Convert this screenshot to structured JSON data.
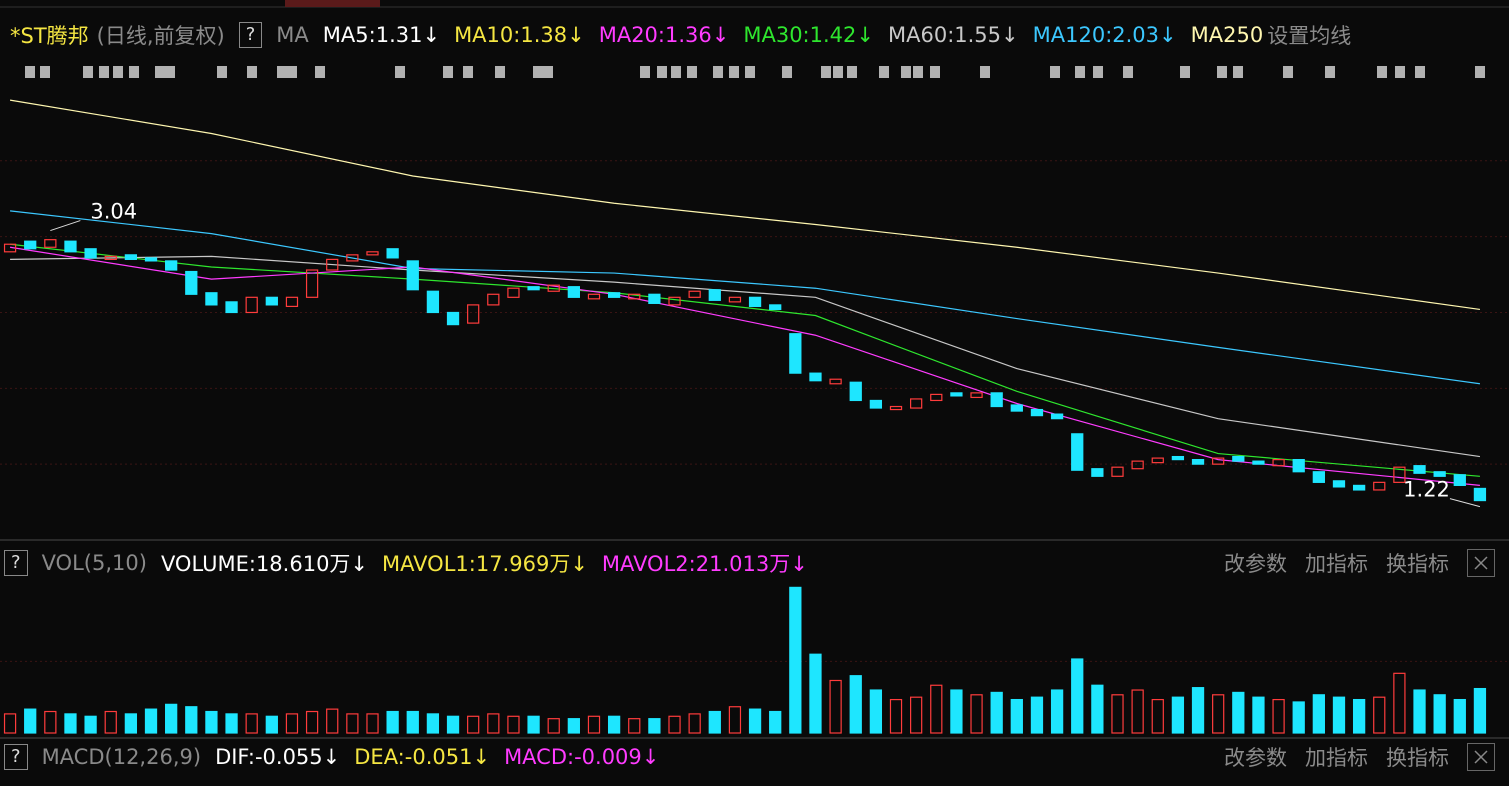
{
  "price_panel": {
    "name": "*ST腾邦",
    "period": "(日线,前复权)",
    "help": "?",
    "ma_label": "MA",
    "indicators": [
      {
        "text": "MA5:1.31↓",
        "color": "#ffffff"
      },
      {
        "text": "MA10:1.38↓",
        "color": "#f5e642"
      },
      {
        "text": "MA20:1.36↓",
        "color": "#ff3cff"
      },
      {
        "text": "MA30:1.42↓",
        "color": "#2ee62e"
      },
      {
        "text": "MA60:1.55↓",
        "color": "#c8c8c8"
      },
      {
        "text": "MA120:2.03↓",
        "color": "#3cc8ff"
      },
      {
        "text": "MA250",
        "color": "#fff7b0"
      }
    ],
    "settings": "设置均线"
  },
  "volume_panel": {
    "help": "?",
    "name": "VOL(5,10)",
    "indicators": [
      {
        "text": "VOLUME:18.610万↓",
        "color": "#ffffff"
      },
      {
        "text": "MAVOL1:17.969万↓",
        "color": "#f5e642"
      },
      {
        "text": "MAVOL2:21.013万↓",
        "color": "#ff3cff"
      }
    ],
    "buttons": [
      "改参数",
      "加指标",
      "换指标"
    ]
  },
  "macd_panel": {
    "help": "?",
    "name": "MACD(12,26,9)",
    "indicators": [
      {
        "text": "DIF:-0.055↓",
        "color": "#ffffff"
      },
      {
        "text": "DEA:-0.051↓",
        "color": "#f5e642"
      },
      {
        "text": "MACD:-0.009↓",
        "color": "#ff3cff"
      }
    ],
    "buttons": [
      "改参数",
      "加指标",
      "换指标"
    ]
  },
  "chart_data": [
    {
      "type": "candlestick",
      "up_color": "#ff3c3c",
      "down_color": "#1ee6ff",
      "ylim": [
        1.0,
        3.98
      ],
      "yticks": [
        1.5,
        2,
        2.5,
        3,
        3.5
      ],
      "grid": true,
      "open": [
        2.9,
        2.97,
        2.93,
        2.97,
        2.92,
        2.85,
        2.88,
        2.86,
        2.84,
        2.77,
        2.63,
        2.57,
        2.5,
        2.6,
        2.54,
        2.6,
        2.78,
        2.84,
        2.88,
        2.92,
        2.84,
        2.64,
        2.5,
        2.43,
        2.55,
        2.6,
        2.67,
        2.64,
        2.67,
        2.59,
        2.63,
        2.59,
        2.62,
        2.55,
        2.6,
        2.65,
        2.57,
        2.6,
        2.55,
        2.36,
        2.1,
        2.03,
        2.04,
        1.92,
        1.86,
        1.87,
        1.92,
        1.97,
        1.94,
        1.97,
        1.89,
        1.86,
        1.83,
        1.7,
        1.47,
        1.42,
        1.47,
        1.51,
        1.55,
        1.53,
        1.5,
        1.55,
        1.52,
        1.49,
        1.53,
        1.45,
        1.39,
        1.36,
        1.33,
        1.38,
        1.49,
        1.45,
        1.43,
        1.34
      ],
      "close": [
        2.95,
        2.92,
        2.98,
        2.9,
        2.86,
        2.87,
        2.85,
        2.84,
        2.78,
        2.62,
        2.55,
        2.5,
        2.6,
        2.55,
        2.6,
        2.78,
        2.85,
        2.88,
        2.9,
        2.86,
        2.65,
        2.5,
        2.42,
        2.55,
        2.62,
        2.66,
        2.65,
        2.68,
        2.6,
        2.62,
        2.6,
        2.62,
        2.56,
        2.6,
        2.64,
        2.58,
        2.6,
        2.54,
        2.52,
        2.1,
        2.05,
        2.06,
        1.92,
        1.87,
        1.88,
        1.93,
        1.96,
        1.95,
        1.97,
        1.88,
        1.85,
        1.82,
        1.8,
        1.46,
        1.42,
        1.48,
        1.52,
        1.54,
        1.53,
        1.5,
        1.54,
        1.52,
        1.5,
        1.53,
        1.45,
        1.38,
        1.35,
        1.33,
        1.38,
        1.48,
        1.44,
        1.42,
        1.36,
        1.26
      ],
      "series": [
        {
          "name": "MA250",
          "color": "#fff7b0",
          "x": [
            0,
            10,
            20,
            30,
            40,
            50,
            60,
            73
          ],
          "values": [
            3.9,
            3.68,
            3.4,
            3.22,
            3.08,
            2.93,
            2.76,
            2.52
          ]
        },
        {
          "name": "MA120",
          "color": "#3cc8ff",
          "x": [
            0,
            10,
            20,
            30,
            40,
            50,
            60,
            73
          ],
          "values": [
            3.17,
            3.02,
            2.79,
            2.76,
            2.66,
            2.46,
            2.27,
            2.03
          ]
        },
        {
          "name": "MA60",
          "color": "#c8c8c8",
          "x": [
            0,
            10,
            20,
            30,
            40,
            50,
            60,
            73
          ],
          "values": [
            2.85,
            2.87,
            2.78,
            2.7,
            2.6,
            2.13,
            1.8,
            1.55
          ]
        },
        {
          "name": "MA30",
          "color": "#2ee62e",
          "x": [
            0,
            10,
            20,
            30,
            40,
            50,
            60,
            73
          ],
          "values": [
            2.95,
            2.8,
            2.72,
            2.63,
            2.48,
            1.98,
            1.57,
            1.42
          ]
        },
        {
          "name": "MA20",
          "color": "#ff3cff",
          "x": [
            0,
            10,
            20,
            30,
            40,
            50,
            60,
            73
          ],
          "values": [
            2.93,
            2.72,
            2.8,
            2.62,
            2.35,
            1.9,
            1.53,
            1.36
          ]
        }
      ],
      "annotations": [
        {
          "label": "3.04",
          "value": 3.04,
          "index": 2
        },
        {
          "label": "1.22",
          "value": 1.22,
          "index": 73
        }
      ]
    },
    {
      "type": "bar",
      "ylim": [
        0,
        62
      ],
      "yticks": [
        30
      ],
      "grid": true,
      "values": [
        8,
        10,
        9,
        8,
        7,
        9,
        8,
        10,
        12,
        11,
        9,
        8,
        8,
        7,
        8,
        9,
        10,
        8,
        8,
        9,
        9,
        8,
        7,
        7,
        8,
        7,
        7,
        6,
        6,
        7,
        7,
        6,
        6,
        7,
        8,
        9,
        11,
        10,
        9,
        61,
        33,
        22,
        24,
        18,
        14,
        15,
        20,
        18,
        16,
        17,
        14,
        15,
        18,
        31,
        20,
        16,
        18,
        14,
        15,
        19,
        16,
        17,
        15,
        14,
        13,
        16,
        15,
        14,
        15,
        25,
        18,
        16,
        14,
        18.61
      ]
    }
  ]
}
